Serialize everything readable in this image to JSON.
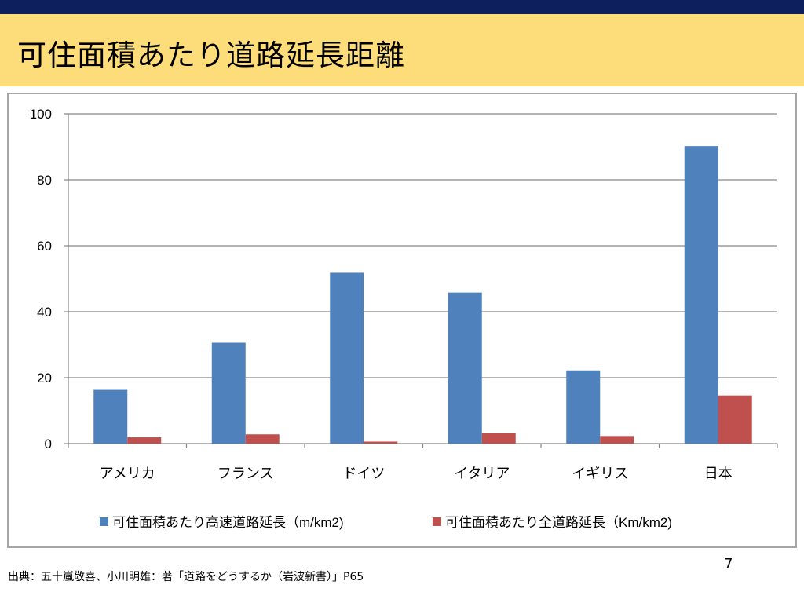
{
  "slide": {
    "title": "可住面積あたり道路延長距離",
    "source": "出典：五十嵐敬喜、小川明雄：著「道路をどうするか（岩波新書）」P65",
    "page_number": "7"
  },
  "colors": {
    "header_bar": "#0d1f5c",
    "title_band": "#fddc7a",
    "series_1": "#4f81bd",
    "series_2": "#c0504d"
  },
  "chart_data": {
    "type": "bar",
    "title": "",
    "xlabel": "",
    "ylabel": "",
    "categories": [
      "アメリカ",
      "フランス",
      "ドイツ",
      "イタリア",
      "イギリス",
      "日本"
    ],
    "series": [
      {
        "name": "可住面積あたり高速道路延長（m/km2)",
        "values": [
          16.3,
          30.6,
          51.8,
          45.8,
          22.2,
          90.2
        ]
      },
      {
        "name": "可住面積あたり全道路延長（Km/km2)",
        "values": [
          1.9,
          2.8,
          0.6,
          3.1,
          2.3,
          14.6
        ]
      }
    ],
    "ylim": [
      0,
      100
    ],
    "yticks": [
      0,
      20,
      40,
      60,
      80,
      100
    ],
    "grid": true,
    "legend_position": "bottom"
  }
}
